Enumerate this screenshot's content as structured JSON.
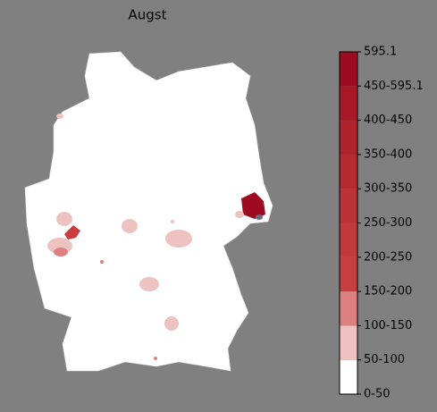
{
  "title": "Augst",
  "colorbar": {
    "labels": [
      "0-50",
      "50-100",
      "100-150",
      "150-200",
      "200-250",
      "250-300",
      "300-350",
      "350-400",
      "400-450",
      "450-595.1",
      "595.1"
    ],
    "colors": [
      "#ffffff",
      "#efc2c2",
      "#dc8080",
      "#c83e3e",
      "#c43a3c",
      "#bd3236",
      "#b72a31",
      "#b0222c",
      "#a81827",
      "#9e0b20"
    ]
  }
}
